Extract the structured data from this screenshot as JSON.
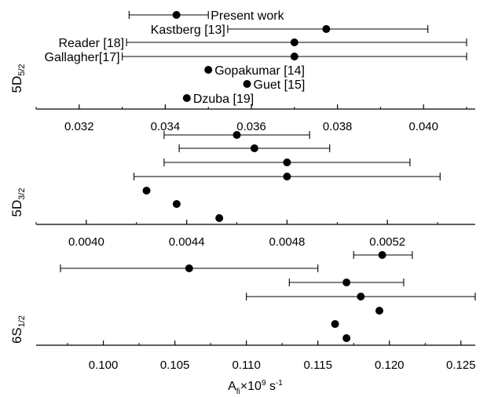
{
  "chart_data": [
    {
      "type": "scatter",
      "ylabel_main": "5D",
      "ylabel_sub": "5/2",
      "xlim": [
        0.031,
        0.0412
      ],
      "ticks": [
        0.032,
        0.034,
        0.036,
        0.038,
        0.04
      ],
      "tick_labels": [
        "0.032",
        "0.034",
        "0.036",
        "0.038",
        "0.040"
      ],
      "points": [
        {
          "label": "Present work",
          "x": 0.03426,
          "xmin": 0.03316,
          "xmax": 0.035
        },
        {
          "label": "Kastberg [13]",
          "x": 0.03774,
          "xmin": 0.03545,
          "xmax": 0.0401
        },
        {
          "label": "Reader [18]",
          "x": 0.037,
          "xmin": 0.0331,
          "xmax": 0.041
        },
        {
          "label": "Gallagher[17]",
          "x": 0.037,
          "xmin": 0.033,
          "xmax": 0.041
        },
        {
          "label": "Gopakumar [14]",
          "x": 0.035
        },
        {
          "label": "Guet [15]",
          "x": 0.0359
        },
        {
          "label": "Dzuba [19]",
          "x": 0.0345
        }
      ]
    },
    {
      "type": "scatter",
      "ylabel_main": "5D",
      "ylabel_sub": "3/2",
      "xlim": [
        0.0038,
        0.00555
      ],
      "ticks": [
        0.004,
        0.0044,
        0.0048,
        0.0052
      ],
      "tick_labels": [
        "0.0040",
        "0.0044",
        "0.0048",
        "0.0052"
      ],
      "points": [
        {
          "x": 0.0046,
          "xmin": 0.00431,
          "xmax": 0.00489
        },
        {
          "x": 0.00467,
          "xmin": 0.00437,
          "xmax": 0.00497
        },
        {
          "x": 0.0048,
          "xmin": 0.00431,
          "xmax": 0.00529
        },
        {
          "x": 0.0048,
          "xmin": 0.00419,
          "xmax": 0.00541
        },
        {
          "x": 0.00424
        },
        {
          "x": 0.00436
        },
        {
          "x": 0.00453
        }
      ]
    },
    {
      "type": "scatter",
      "ylabel_main": "6S",
      "ylabel_sub": "1/2",
      "xlabel_main": "A",
      "xlabel_sub": "fi",
      "xlabel_rest": "×10",
      "xlabel_sup": "9",
      "xlabel_unit": " s",
      "xlabel_unit_sup": "-1",
      "xlim": [
        0.0953,
        0.126
      ],
      "ticks": [
        0.1,
        0.105,
        0.11,
        0.115,
        0.12,
        0.125
      ],
      "tick_labels": [
        "0.100",
        "0.105",
        "0.110",
        "0.115",
        "0.120",
        "0.125"
      ],
      "points": [
        {
          "x": 0.1195,
          "xmin": 0.1175,
          "xmax": 0.1216
        },
        {
          "x": 0.106,
          "xmin": 0.097,
          "xmax": 0.115
        },
        {
          "x": 0.117,
          "xmin": 0.113,
          "xmax": 0.121
        },
        {
          "x": 0.118,
          "xmin": 0.11,
          "xmax": 0.126
        },
        {
          "x": 0.1193
        },
        {
          "x": 0.1162
        },
        {
          "x": 0.117
        }
      ]
    }
  ]
}
